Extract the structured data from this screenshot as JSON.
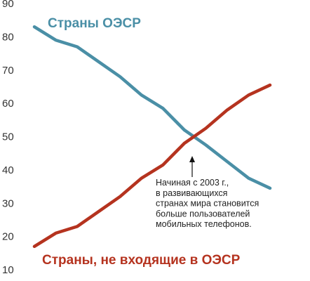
{
  "chart_data": {
    "type": "line",
    "title": "",
    "xlabel": "",
    "ylabel": "",
    "ylim": [
      10,
      90
    ],
    "yticks": [
      10,
      20,
      30,
      40,
      50,
      60,
      70,
      80,
      90
    ],
    "grid": false,
    "series": [
      {
        "name": "Страны ОЭСР",
        "color": "#4A8FA6",
        "values": [
          83,
          79,
          77,
          72.5,
          68,
          62.5,
          58.5,
          52,
          47.5,
          42.5,
          37.5,
          34.5
        ]
      },
      {
        "name": "Страны, не входящие в ОЭСР",
        "color": "#B5331F",
        "values": [
          17,
          21,
          23,
          27.5,
          32,
          37.5,
          41.5,
          48,
          52.5,
          58,
          62.5,
          65.5
        ]
      }
    ],
    "annotation": {
      "lines": [
        "Начиная с 2003 г.,",
        "в развивающихся",
        "странах мира становится",
        "больше пользователей",
        "мобильных телефонов."
      ]
    }
  }
}
